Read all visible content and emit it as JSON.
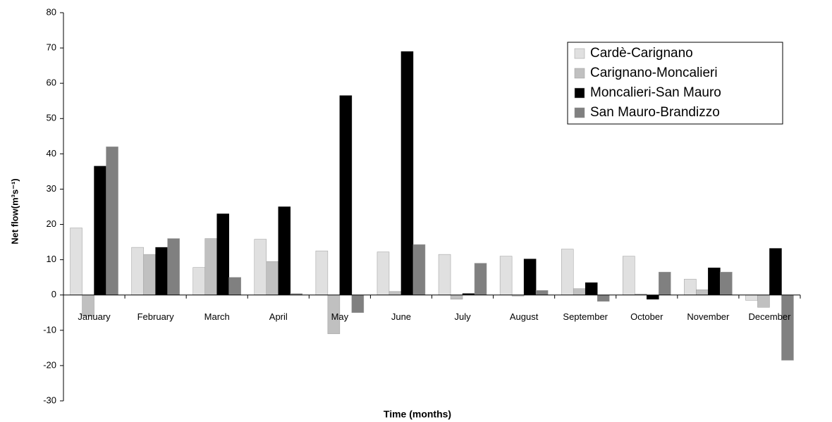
{
  "chart_data": {
    "type": "bar",
    "x_label": "Time (months)",
    "y_label": "Net flow(m³s⁻¹)",
    "categories": [
      "January",
      "February",
      "March",
      "April",
      "May",
      "June",
      "July",
      "August",
      "September",
      "October",
      "November",
      "December"
    ],
    "series": [
      {
        "name": "Cardè-Carignano",
        "color": "#e0e0e0",
        "values": [
          19,
          13.5,
          7.8,
          15.8,
          12.5,
          12.2,
          11.5,
          11,
          13,
          11,
          4.5,
          -1.5
        ]
      },
      {
        "name": "Carignano-Moncalieri",
        "color": "#c0c0c0",
        "values": [
          -6,
          11.5,
          16,
          9.5,
          -11,
          1,
          -1.2,
          -0.3,
          1.8,
          0.3,
          1.5,
          -3.5
        ]
      },
      {
        "name": "Moncalieri-San Mauro",
        "color": "#000000",
        "values": [
          36.5,
          13.5,
          23,
          25,
          56.5,
          69,
          0.4,
          10.2,
          3.5,
          -1.2,
          7.7,
          13.2
        ]
      },
      {
        "name": "San Mauro-Brandizzo",
        "color": "#808080",
        "values": [
          42,
          16,
          5,
          0.4,
          -5,
          14.3,
          9,
          1.3,
          -1.8,
          6.5,
          6.5,
          -18.5
        ]
      }
    ],
    "ylim": [
      -30,
      80
    ],
    "yticks": [
      -30,
      -20,
      -10,
      0,
      10,
      20,
      30,
      40,
      50,
      60,
      70,
      80
    ],
    "legend": "upper-right"
  }
}
